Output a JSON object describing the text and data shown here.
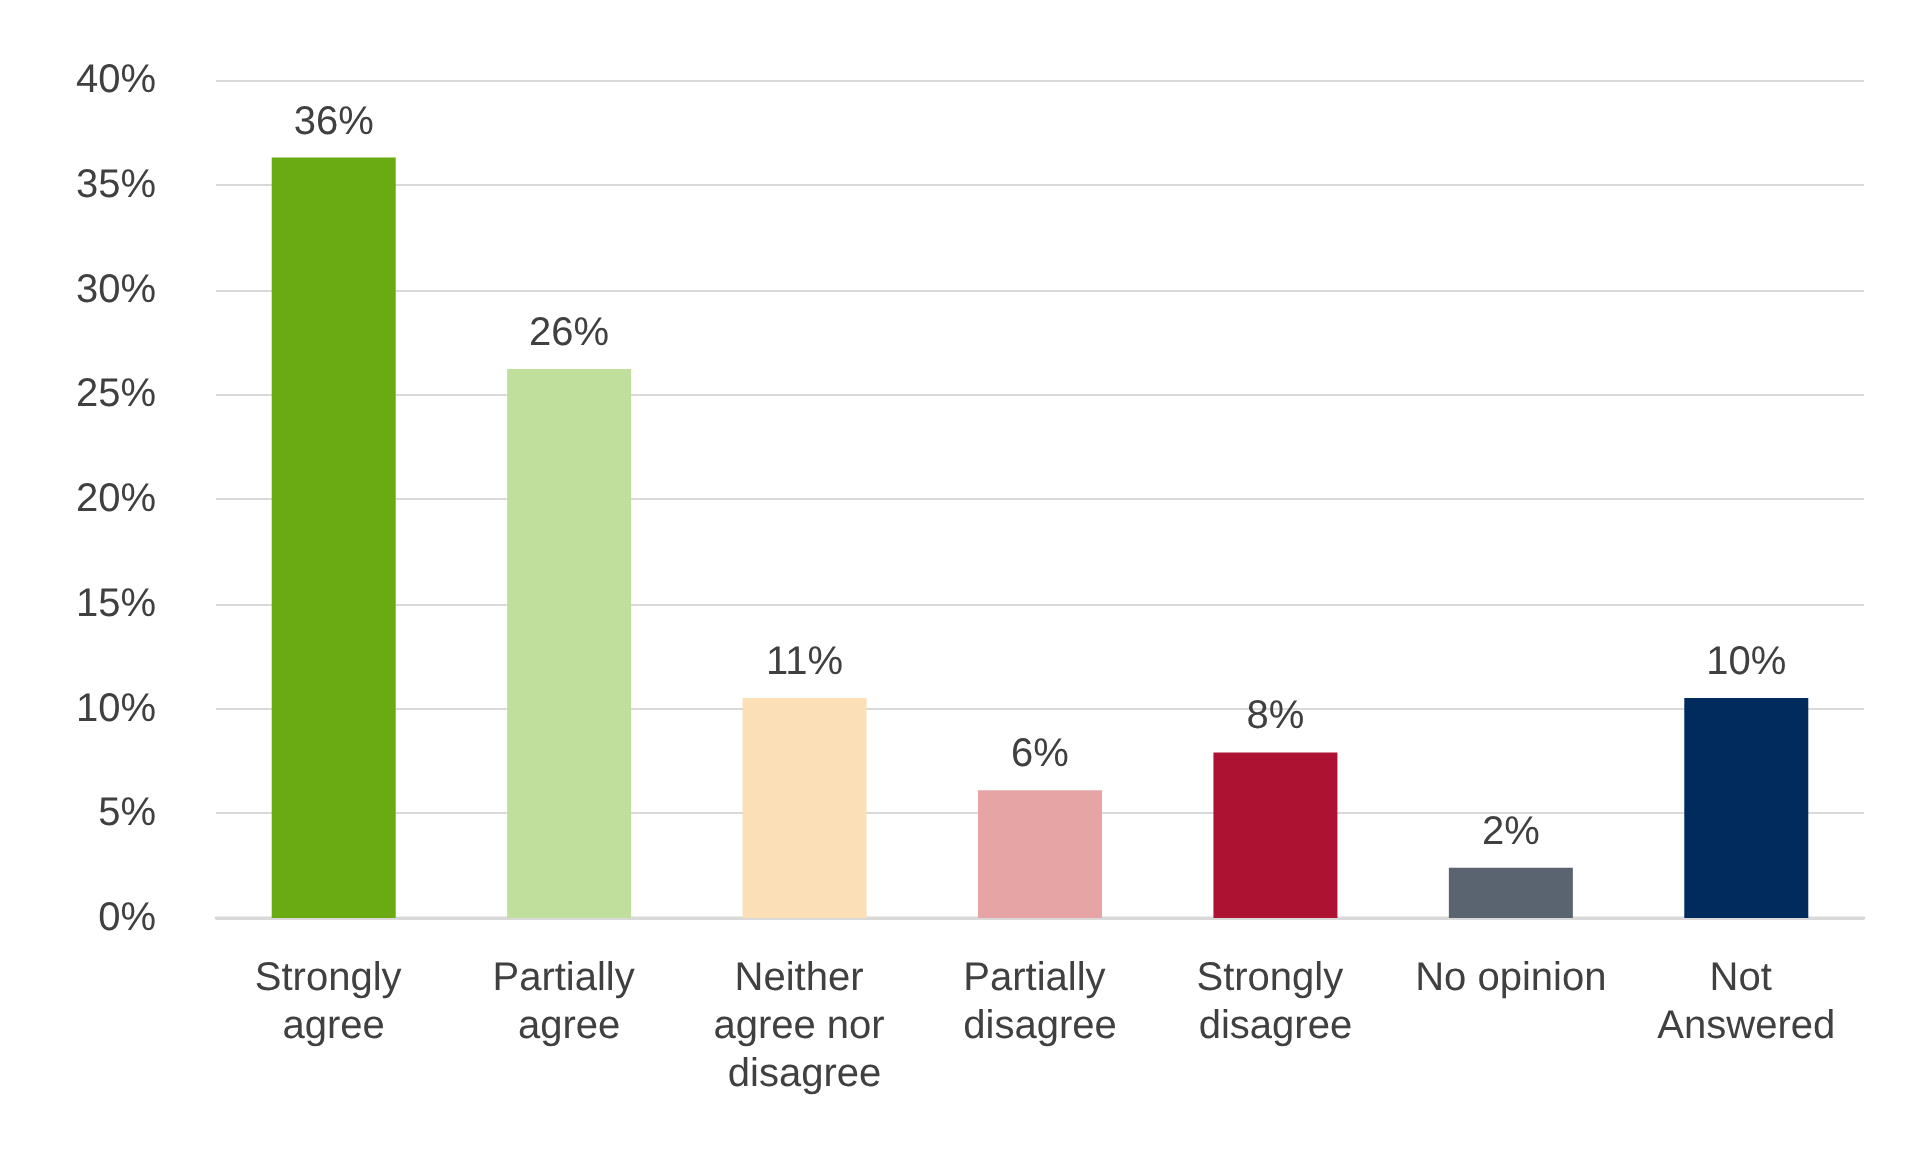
{
  "chart_data": {
    "type": "bar",
    "categories": [
      "Strongly agree",
      "Partially agree",
      "Neither agree nor disagree",
      "Partially disagree",
      "Strongly disagree",
      "No opinion",
      "Not Answered"
    ],
    "values": [
      36.3,
      26.2,
      10.5,
      6.1,
      7.9,
      2.4,
      10.5
    ],
    "colors": [
      "#6aaa12",
      "#c0de9c",
      "#fbdfb7",
      "#e6a4a4",
      "#ae1232",
      "#5a6470",
      "#002b5c"
    ],
    "value_labels": [
      "36%",
      "26%",
      "11%",
      "6%",
      "8%",
      "2%",
      "10%"
    ],
    "ylim": [
      0,
      40
    ],
    "yticks": [
      {
        "value": 0,
        "label": "0%"
      },
      {
        "value": 5,
        "label": "5%"
      },
      {
        "value": 10,
        "label": "10%"
      },
      {
        "value": 15,
        "label": "15%"
      },
      {
        "value": 20,
        "label": "20%"
      },
      {
        "value": 25,
        "label": "25%"
      },
      {
        "value": 30,
        "label": "30%"
      },
      {
        "value": 35,
        "label": "35%"
      },
      {
        "value": 40,
        "label": "40%"
      }
    ],
    "grid": "y"
  }
}
